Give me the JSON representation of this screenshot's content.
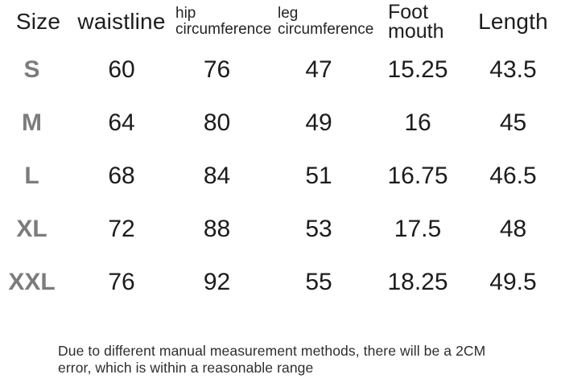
{
  "chart_data": {
    "type": "table",
    "columns": [
      "Size",
      "waistline",
      "hip circumference",
      "leg circumference",
      "Foot mouth",
      "Length"
    ],
    "rows": [
      [
        "S",
        "60",
        "76",
        "47",
        "15.25",
        "43.5"
      ],
      [
        "M",
        "64",
        "80",
        "49",
        "16",
        "45"
      ],
      [
        "L",
        "68",
        "84",
        "51",
        "16.75",
        "46.5"
      ],
      [
        "XL",
        "72",
        "88",
        "53",
        "17.5",
        "48"
      ],
      [
        "XXL",
        "76",
        "92",
        "55",
        "18.25",
        "49.5"
      ]
    ],
    "note": "Due to different manual measurement methods, there will be a 2CM error, which is within a reasonable range"
  },
  "colors": {
    "background": "#ffffff",
    "header_text": "#1d1d1d",
    "value_text": "#1c1c1c",
    "size_label_text": "#7c7c7c",
    "note_text": "#2e2e2e"
  }
}
